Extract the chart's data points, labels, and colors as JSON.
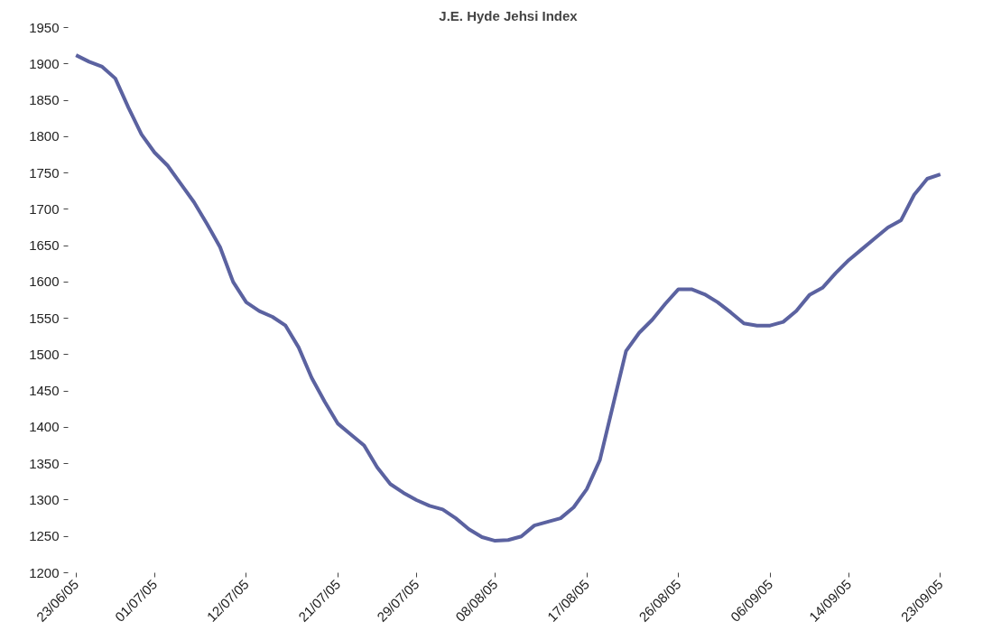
{
  "chart_data": {
    "type": "line",
    "title": "J.E. Hyde Jehsi Index",
    "categories": [
      "23/06/05",
      null,
      null,
      null,
      null,
      null,
      "01/07/05",
      null,
      null,
      null,
      null,
      null,
      null,
      "12/07/05",
      null,
      null,
      null,
      null,
      null,
      null,
      "21/07/05",
      null,
      null,
      null,
      null,
      null,
      "29/07/05",
      null,
      null,
      null,
      null,
      null,
      "08/08/05",
      null,
      null,
      null,
      null,
      null,
      null,
      "17/08/05",
      null,
      null,
      null,
      null,
      null,
      null,
      "26/08/05",
      null,
      null,
      null,
      null,
      null,
      null,
      "06/09/05",
      null,
      null,
      null,
      null,
      null,
      "14/09/05",
      null,
      null,
      null,
      null,
      null,
      null,
      "23/09/05"
    ],
    "series": [
      {
        "color": "#5b62a0",
        "values": [
          1912,
          1903,
          1896,
          1880,
          1840,
          1803,
          1778,
          1760,
          1735,
          1710,
          1680,
          1648,
          1600,
          1572,
          1560,
          1552,
          1540,
          1510,
          1468,
          1435,
          1405,
          1390,
          1375,
          1345,
          1322,
          1310,
          1300,
          1292,
          1287,
          1275,
          1260,
          1249,
          1244,
          1245,
          1250,
          1265,
          1270,
          1275,
          1290,
          1315,
          1355,
          1430,
          1505,
          1530,
          1548,
          1570,
          1590,
          1590,
          1583,
          1572,
          1558,
          1543,
          1540,
          1540,
          1545,
          1560,
          1582,
          1592,
          1612,
          1630,
          1645,
          1660,
          1675,
          1685,
          1720,
          1742,
          1748
        ]
      }
    ],
    "ylim": [
      1200,
      1950
    ],
    "yticks": [
      1200,
      1250,
      1300,
      1350,
      1400,
      1450,
      1500,
      1550,
      1600,
      1650,
      1700,
      1750,
      1800,
      1850,
      1900,
      1950
    ],
    "grid": false,
    "marker": "none",
    "line_style": "solid"
  }
}
